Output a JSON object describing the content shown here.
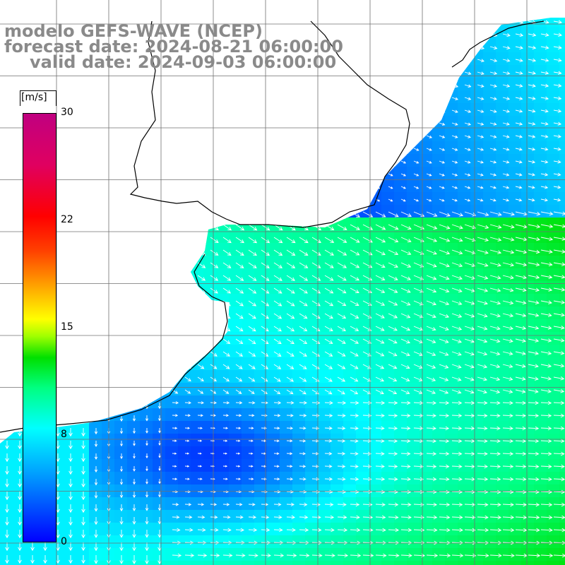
{
  "header": {
    "line1": "modelo GEFS-WAVE (NCEP)",
    "line2": "forecast date: 2024-08-21 06:00:00",
    "line3": "valid date: 2024-09-03 06:00:00"
  },
  "colorbar": {
    "unit": "[m/s]",
    "ticks": [
      {
        "label": "30",
        "value": 30
      },
      {
        "label": "22",
        "value": 22
      },
      {
        "label": "15",
        "value": 15
      },
      {
        "label": "8",
        "value": 8
      },
      {
        "label": "0",
        "value": 0
      }
    ],
    "min": 0,
    "max": 30
  },
  "colors": {
    "land": "#ffffff",
    "coast": "#000000",
    "grid": "#707070",
    "arrow": "#ffffff",
    "title": "#8a8a8a"
  }
}
